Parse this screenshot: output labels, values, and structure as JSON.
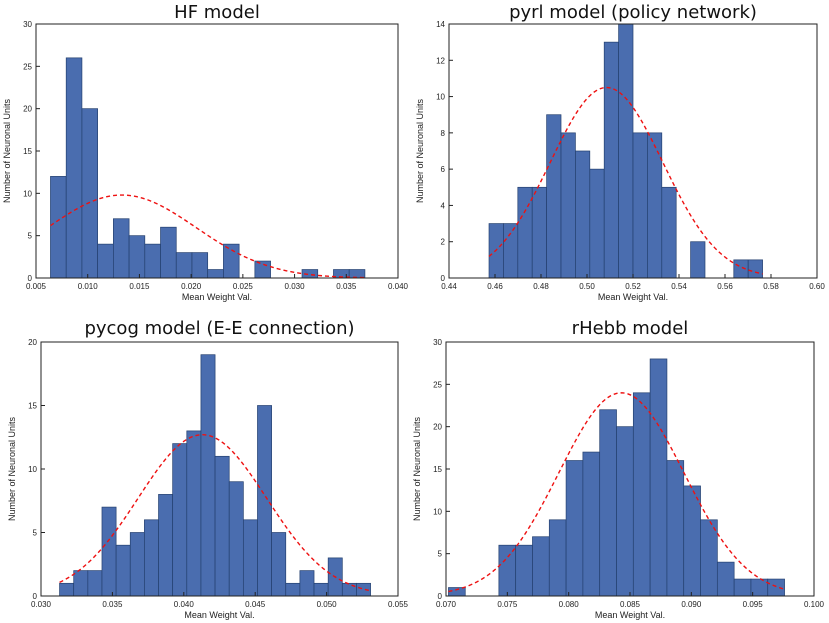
{
  "figure": "histogram-grid",
  "chart_data": [
    {
      "type": "bar",
      "title": "HF model",
      "xlabel": "Mean Weight Val.",
      "ylabel": "Number of Neuronal Units",
      "xlim": [
        0.005,
        0.04
      ],
      "ylim": [
        0,
        30
      ],
      "xticks": [
        "0.005",
        "0.010",
        "0.015",
        "0.020",
        "0.025",
        "0.030",
        "0.035",
        "0.040"
      ],
      "yticks": [
        "0",
        "5",
        "10",
        "15",
        "20",
        "25",
        "30"
      ],
      "bin_start": 0.0064,
      "bin_width": 0.00152,
      "values": [
        12,
        26,
        20,
        4,
        7,
        5,
        4,
        6,
        3,
        3,
        1,
        4,
        0,
        2,
        0,
        0,
        1,
        0,
        1,
        1
      ],
      "fit": {
        "kind": "gaussian",
        "mean": 0.0133,
        "sd": 0.0072,
        "peak": 9.8
      }
    },
    {
      "type": "bar",
      "title": "pyrl model (policy network)",
      "xlabel": "Mean Weight Val.",
      "ylabel": "Number of Neuronal Units",
      "xlim": [
        0.44,
        0.6
      ],
      "ylim": [
        0,
        14
      ],
      "xticks": [
        "0.44",
        "0.46",
        "0.48",
        "0.50",
        "0.52",
        "0.54",
        "0.56",
        "0.58",
        "0.60"
      ],
      "yticks": [
        "0",
        "2",
        "4",
        "6",
        "8",
        "10",
        "12",
        "14"
      ],
      "bin_start": 0.4574,
      "bin_width": 0.00626,
      "values": [
        3,
        3,
        5,
        5,
        9,
        8,
        7,
        6,
        13,
        14,
        8,
        8,
        5,
        0,
        2,
        0,
        0,
        1,
        1
      ],
      "fit": {
        "kind": "gaussian",
        "mean": 0.5085,
        "sd": 0.0245,
        "peak": 10.5
      }
    },
    {
      "type": "bar",
      "title": "pycog model (E-E connection)",
      "xlabel": "Mean Weight Val.",
      "ylabel": "Number of Neuronal Units",
      "xlim": [
        0.03,
        0.055
      ],
      "ylim": [
        0,
        20
      ],
      "xticks": [
        "0.030",
        "0.035",
        "0.040",
        "0.045",
        "0.050",
        "0.055"
      ],
      "yticks": [
        "0",
        "5",
        "10",
        "15",
        "20"
      ],
      "bin_start": 0.0313,
      "bin_width": 0.00099,
      "values": [
        1,
        2,
        2,
        7,
        4,
        5,
        6,
        8,
        12,
        13,
        19,
        11,
        9,
        6,
        15,
        5,
        1,
        2,
        1,
        3,
        1,
        1
      ],
      "fit": {
        "kind": "gaussian",
        "mean": 0.0413,
        "sd": 0.0045,
        "peak": 12.7
      }
    },
    {
      "type": "bar",
      "title": "rHebb model",
      "xlabel": "Mean Weight Val.",
      "ylabel": "Number of Neuronal Units",
      "xlim": [
        0.07,
        0.1
      ],
      "ylim": [
        0,
        30
      ],
      "xticks": [
        "0.070",
        "0.075",
        "0.080",
        "0.085",
        "0.090",
        "0.095",
        "0.100"
      ],
      "yticks": [
        "0",
        "5",
        "10",
        "15",
        "20",
        "25",
        "30"
      ],
      "bin_start": 0.0702,
      "bin_width": 0.00137,
      "values": [
        1,
        0,
        0,
        6,
        6,
        7,
        9,
        16,
        17,
        22,
        20,
        24,
        28,
        16,
        13,
        9,
        4,
        2,
        2,
        2
      ],
      "fit": {
        "kind": "gaussian",
        "mean": 0.0843,
        "sd": 0.0051,
        "peak": 24.0
      }
    }
  ]
}
